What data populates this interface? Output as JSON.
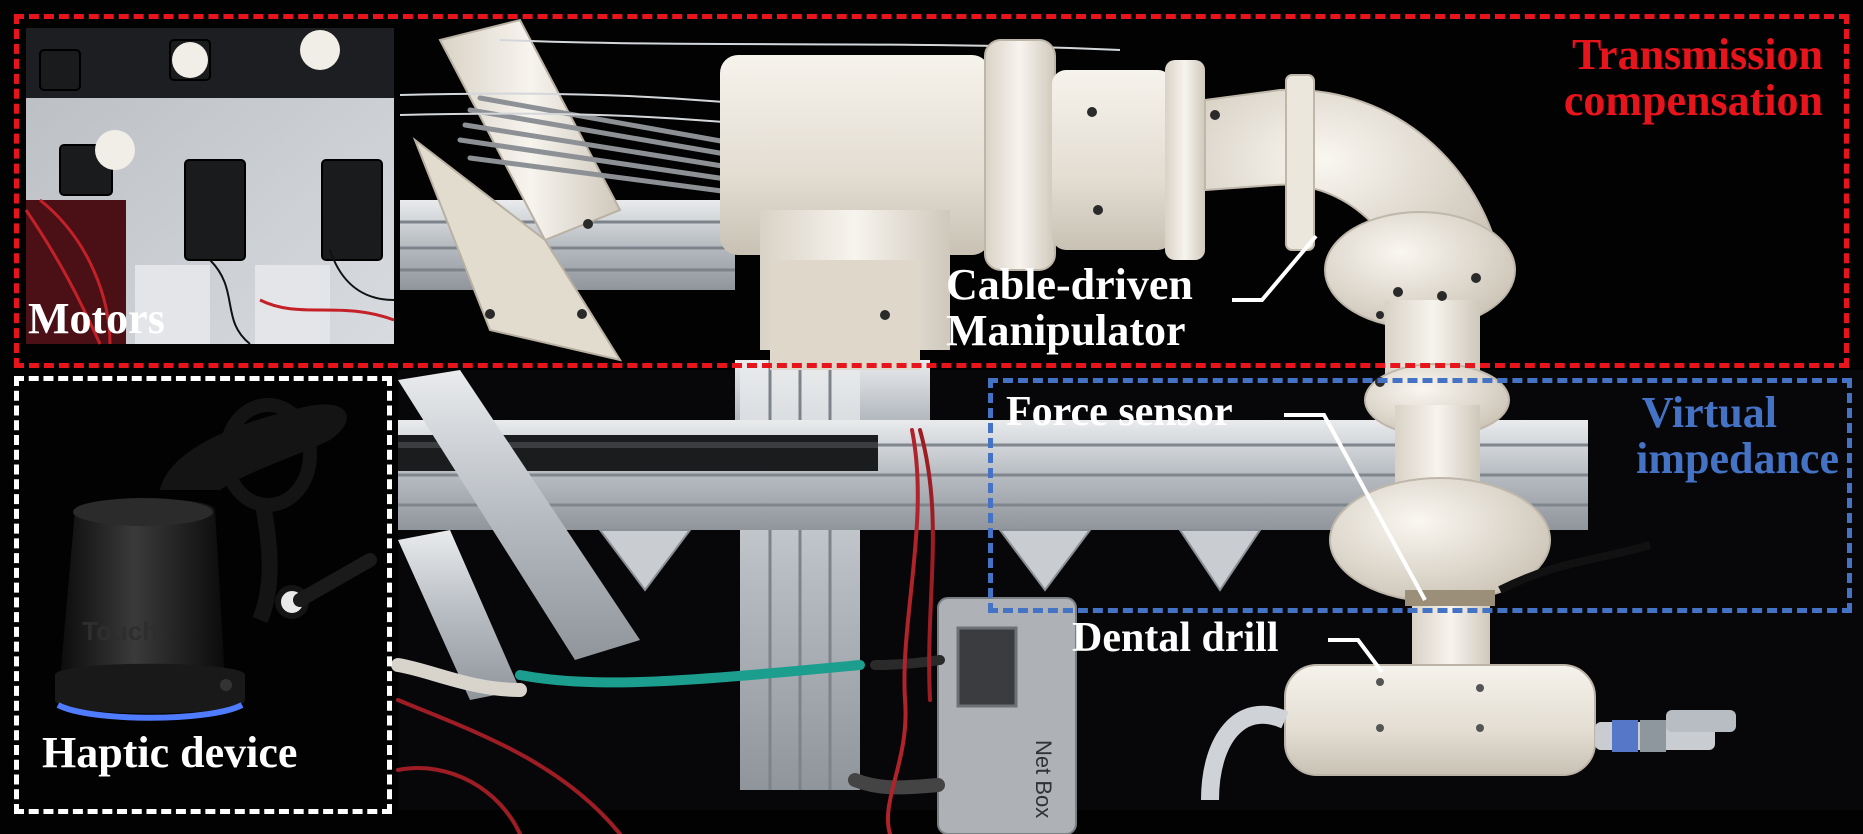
{
  "colors": {
    "transmission_box": "#e8141b",
    "impedance_box": "#4472c4",
    "haptic_box": "#ffffff"
  },
  "labels": {
    "transmission": "Transmission compensation",
    "transmission_line1": "Transmission",
    "transmission_line2": "compensation",
    "virtual_impedance": "Virtual impedance",
    "virtual_line1": "Virtual",
    "virtual_line2": "impedance",
    "motors": "Motors",
    "haptic_device": "Haptic device",
    "cable_line1": "Cable-driven",
    "cable_line2": "Manipulator",
    "force_sensor": "Force sensor",
    "dental_drill": "Dental drill",
    "touch_logo": "Touch",
    "netbox_text": "Net Box"
  }
}
